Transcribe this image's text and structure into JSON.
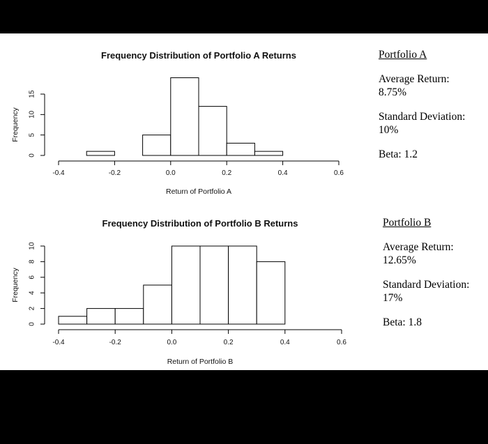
{
  "chart_data": [
    {
      "type": "bar",
      "title": "Frequency Distribution of Portfolio A Returns",
      "xlabel": "Return of Portfolio A",
      "ylabel": "Frequency",
      "bin_edges": [
        -0.4,
        -0.3,
        -0.2,
        -0.1,
        0.0,
        0.1,
        0.2,
        0.3,
        0.4,
        0.5,
        0.6
      ],
      "values": [
        0,
        1,
        0,
        5,
        19,
        12,
        3,
        1,
        0,
        0
      ],
      "xticks": [
        "-0.4",
        "-0.2",
        "0.0",
        "0.2",
        "0.4",
        "0.6"
      ],
      "yticks": [
        "0",
        "5",
        "10",
        "15"
      ],
      "xlim": [
        -0.4,
        0.6
      ],
      "ylim": [
        0,
        15
      ],
      "grid": false
    },
    {
      "type": "bar",
      "title": "Frequency Distribution of Portfolio B Returns",
      "xlabel": "Return of Portfolio B",
      "ylabel": "Frequency",
      "bin_edges": [
        -0.4,
        -0.3,
        -0.2,
        -0.1,
        0.0,
        0.1,
        0.2,
        0.3,
        0.4,
        0.5,
        0.6
      ],
      "values": [
        1,
        2,
        2,
        5,
        10,
        10,
        10,
        8,
        0,
        0
      ],
      "xticks": [
        "-0.4",
        "-0.2",
        "0.0",
        "0.2",
        "0.4",
        "0.6"
      ],
      "yticks": [
        "0",
        "2",
        "4",
        "6",
        "8",
        "10"
      ],
      "xlim": [
        -0.4,
        0.6
      ],
      "ylim": [
        0,
        10
      ],
      "grid": false
    }
  ],
  "portfolio_a": {
    "heading": "Portfolio A",
    "avg_label": "Average Return:",
    "avg_value": "8.75%",
    "sd_label": "Standard Deviation:",
    "sd_value": "10%",
    "beta": "Beta: 1.2"
  },
  "portfolio_b": {
    "heading": "Portfolio B",
    "avg_label": "Average Return:",
    "avg_value": "12.65%",
    "sd_label": "Standard Deviation:",
    "sd_value": "17%",
    "beta": "Beta: 1.8"
  }
}
